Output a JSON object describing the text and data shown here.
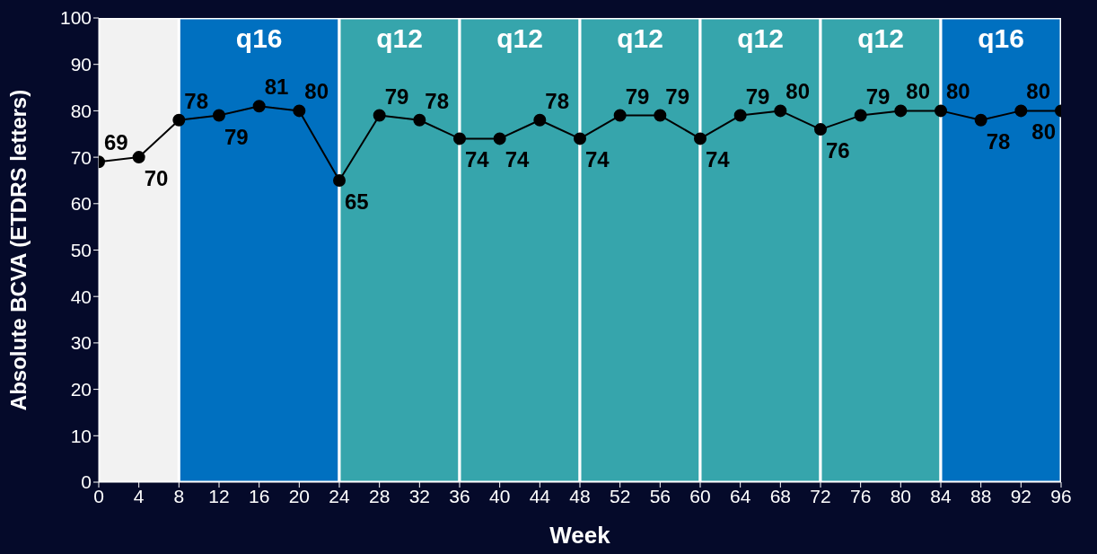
{
  "chart_data": {
    "type": "line",
    "xlabel": "Week",
    "ylabel": "Absolute BCVA (ETDRS letters)",
    "x": [
      0,
      4,
      8,
      12,
      16,
      20,
      24,
      28,
      32,
      36,
      40,
      44,
      48,
      52,
      56,
      60,
      64,
      68,
      72,
      76,
      80,
      84,
      88,
      92,
      96
    ],
    "series": [
      {
        "color": "#000000",
        "values": [
          69,
          70,
          78,
          79,
          81,
          80,
          65,
          79,
          78,
          74,
          74,
          78,
          74,
          79,
          79,
          74,
          79,
          80,
          76,
          79,
          80,
          80,
          78,
          80,
          80
        ]
      }
    ],
    "xlim": [
      0,
      96
    ],
    "xticks": [
      0,
      4,
      8,
      12,
      16,
      20,
      24,
      28,
      32,
      36,
      40,
      44,
      48,
      52,
      56,
      60,
      64,
      68,
      72,
      76,
      80,
      84,
      88,
      92,
      96
    ],
    "ylim": [
      0,
      100
    ],
    "yticks": [
      0,
      10,
      20,
      30,
      40,
      50,
      60,
      70,
      80,
      90,
      100
    ],
    "bands": [
      {
        "axis": "x",
        "from": 0,
        "to": 8,
        "color": "#f2f2f2"
      },
      {
        "axis": "x",
        "from": 8,
        "to": 24,
        "label": "q16",
        "color": "#0070c0"
      },
      {
        "axis": "x",
        "from": 24,
        "to": 36,
        "label": "q12",
        "color": "#36a5ac"
      },
      {
        "axis": "x",
        "from": 36,
        "to": 48,
        "label": "q12",
        "color": "#36a5ac"
      },
      {
        "axis": "x",
        "from": 48,
        "to": 60,
        "label": "q12",
        "color": "#36a5ac"
      },
      {
        "axis": "x",
        "from": 60,
        "to": 72,
        "label": "q12",
        "color": "#36a5ac"
      },
      {
        "axis": "x",
        "from": 72,
        "to": 84,
        "label": "q12",
        "color": "#36a5ac"
      },
      {
        "axis": "x",
        "from": 84,
        "to": 96,
        "label": "q16",
        "color": "#0070c0"
      }
    ],
    "data_labels": true,
    "marker": "circle",
    "line_style": "solid",
    "grid": false,
    "legend": false
  }
}
